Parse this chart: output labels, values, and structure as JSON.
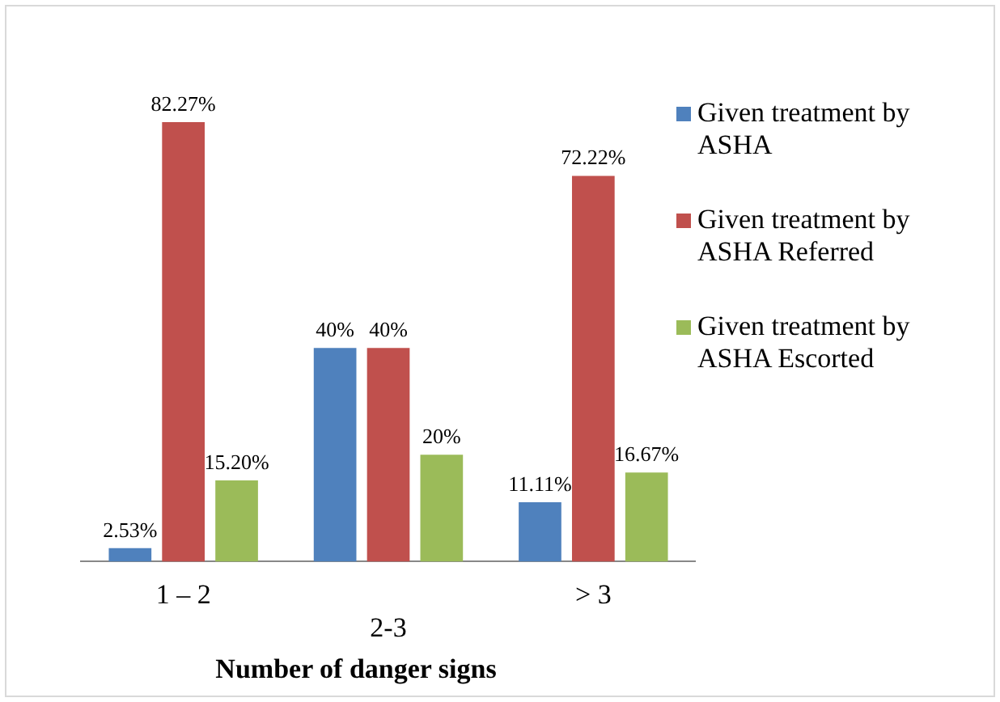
{
  "chart_data": {
    "type": "bar",
    "xlabel": "Number of danger signs",
    "categories": [
      "1 – 2",
      "2-3",
      "> 3"
    ],
    "series": [
      {
        "name": "Given treatment by ASHA",
        "color": "#4f81bd",
        "values": [
          2.53,
          40,
          11.11
        ],
        "value_labels": [
          "2.53%",
          "40%",
          "11.11%"
        ]
      },
      {
        "name": "Given treatment by ASHA Referred",
        "color": "#c0504d",
        "values": [
          82.27,
          40,
          72.22
        ],
        "value_labels": [
          "82.27%",
          "40%",
          "72.22%"
        ]
      },
      {
        "name": "Given treatment by ASHA Escorted",
        "color": "#9bbb59",
        "values": [
          15.2,
          20,
          16.67
        ],
        "value_labels": [
          "15.20%",
          "20%",
          "16.67%"
        ]
      }
    ],
    "legend": "right",
    "grid": false
  }
}
